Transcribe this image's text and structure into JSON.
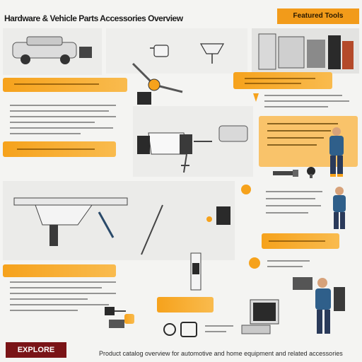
{
  "header": {
    "title": "Hardware & Vehicle Parts Accessories Overview",
    "badge": "Featured Tools"
  },
  "footer": {
    "logo_text": "EXPLORE",
    "caption": "Product catalog overview for automotive and home equipment and related accessories"
  },
  "colors": {
    "accent": "#f6a21c",
    "brand": "#7a1417",
    "background": "#f4f4f2",
    "panel": "#e7e7e5"
  }
}
